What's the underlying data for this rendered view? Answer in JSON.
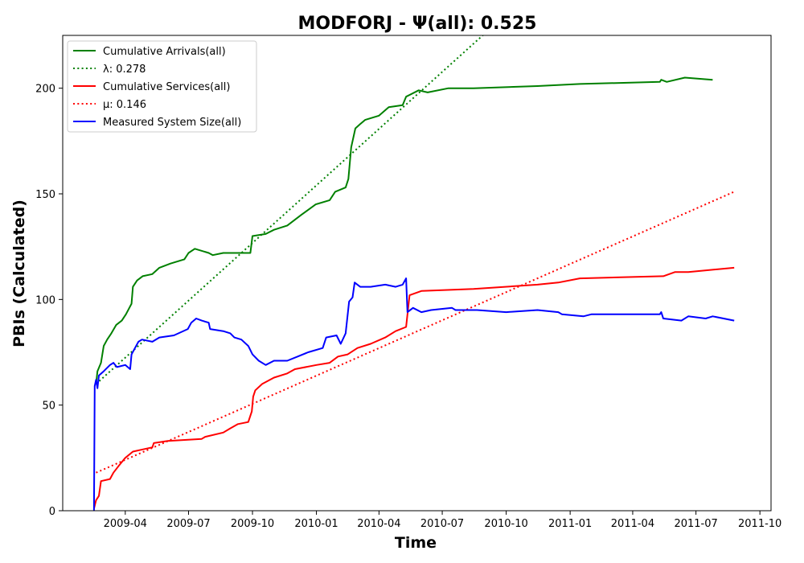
{
  "chart_data": {
    "type": "line",
    "title": "MODFORJ -  Ψ(all): 0.525",
    "xlabel": "Time",
    "ylabel": "PBIs (Calculated)",
    "xlim": [
      "2009-01-01",
      "2011-10-17"
    ],
    "ylim": [
      0,
      225
    ],
    "x_ticks": [
      "2009-04",
      "2009-07",
      "2009-10",
      "2010-01",
      "2010-04",
      "2010-07",
      "2010-10",
      "2011-01",
      "2011-04",
      "2011-07",
      "2011-10"
    ],
    "y_ticks": [
      0,
      50,
      100,
      150,
      200
    ],
    "grid": false,
    "legend_position": "top-left",
    "series": [
      {
        "name": "Cumulative Arrivals(all)",
        "color": "#008000",
        "style": "solid",
        "points": [
          [
            "2009-02-18",
            60
          ],
          [
            "2009-02-20",
            66
          ],
          [
            "2009-02-25",
            70
          ],
          [
            "2009-03-01",
            78
          ],
          [
            "2009-03-06",
            81
          ],
          [
            "2009-03-12",
            84
          ],
          [
            "2009-03-19",
            88
          ],
          [
            "2009-03-27",
            90
          ],
          [
            "2009-04-02",
            93
          ],
          [
            "2009-04-10",
            98
          ],
          [
            "2009-04-12",
            106
          ],
          [
            "2009-04-18",
            109
          ],
          [
            "2009-04-26",
            111
          ],
          [
            "2009-05-10",
            112
          ],
          [
            "2009-05-20",
            115
          ],
          [
            "2009-06-05",
            117
          ],
          [
            "2009-06-25",
            119
          ],
          [
            "2009-07-01",
            122
          ],
          [
            "2009-07-10",
            124
          ],
          [
            "2009-07-30",
            122
          ],
          [
            "2009-08-05",
            121
          ],
          [
            "2009-08-20",
            122
          ],
          [
            "2009-09-10",
            122
          ],
          [
            "2009-09-28",
            122
          ],
          [
            "2009-10-01",
            130
          ],
          [
            "2009-10-20",
            131
          ],
          [
            "2009-11-01",
            133
          ],
          [
            "2009-11-20",
            135
          ],
          [
            "2009-12-10",
            140
          ],
          [
            "2009-12-31",
            145
          ],
          [
            "2010-01-20",
            147
          ],
          [
            "2010-01-28",
            151
          ],
          [
            "2010-02-12",
            153
          ],
          [
            "2010-02-16",
            157
          ],
          [
            "2010-02-20",
            172
          ],
          [
            "2010-02-26",
            181
          ],
          [
            "2010-03-05",
            183
          ],
          [
            "2010-03-12",
            185
          ],
          [
            "2010-04-01",
            187
          ],
          [
            "2010-04-15",
            191
          ],
          [
            "2010-05-05",
            192
          ],
          [
            "2010-05-10",
            196
          ],
          [
            "2010-05-28",
            199
          ],
          [
            "2010-06-10",
            198
          ],
          [
            "2010-07-10",
            200
          ],
          [
            "2010-08-15",
            200
          ],
          [
            "2010-11-15",
            201
          ],
          [
            "2011-01-15",
            202
          ],
          [
            "2011-05-10",
            203
          ],
          [
            "2011-05-12",
            204
          ],
          [
            "2011-05-20",
            203
          ],
          [
            "2011-06-15",
            205
          ],
          [
            "2011-07-25",
            204
          ]
        ]
      },
      {
        "name": "λ: 0.278",
        "color": "#008000",
        "style": "dotted",
        "points": [
          [
            "2009-02-18",
            60
          ],
          [
            "2010-10-01",
            235
          ]
        ]
      },
      {
        "name": "Cumulative Services(all)",
        "color": "#ff0000",
        "style": "solid",
        "points": [
          [
            "2009-02-15",
            1
          ],
          [
            "2009-02-18",
            5
          ],
          [
            "2009-02-22",
            7
          ],
          [
            "2009-02-25",
            14
          ],
          [
            "2009-03-10",
            15
          ],
          [
            "2009-03-15",
            18
          ],
          [
            "2009-03-22",
            21
          ],
          [
            "2009-04-01",
            25
          ],
          [
            "2009-04-12",
            28
          ],
          [
            "2009-04-26",
            29
          ],
          [
            "2009-05-10",
            30
          ],
          [
            "2009-05-12",
            32
          ],
          [
            "2009-06-01",
            33
          ],
          [
            "2009-07-20",
            34
          ],
          [
            "2009-07-25",
            35
          ],
          [
            "2009-08-20",
            37
          ],
          [
            "2009-08-30",
            39
          ],
          [
            "2009-09-10",
            41
          ],
          [
            "2009-09-25",
            42
          ],
          [
            "2009-09-30",
            47
          ],
          [
            "2009-10-02",
            54
          ],
          [
            "2009-10-05",
            57
          ],
          [
            "2009-10-15",
            60
          ],
          [
            "2009-11-01",
            63
          ],
          [
            "2009-11-20",
            65
          ],
          [
            "2009-12-01",
            67
          ],
          [
            "2010-01-01",
            69
          ],
          [
            "2010-01-20",
            70
          ],
          [
            "2010-02-01",
            73
          ],
          [
            "2010-02-15",
            74
          ],
          [
            "2010-03-01",
            77
          ],
          [
            "2010-03-20",
            79
          ],
          [
            "2010-04-10",
            82
          ],
          [
            "2010-04-25",
            85
          ],
          [
            "2010-05-10",
            87
          ],
          [
            "2010-05-15",
            102
          ],
          [
            "2010-06-01",
            104
          ],
          [
            "2010-08-15",
            105
          ],
          [
            "2010-11-15",
            107
          ],
          [
            "2010-12-15",
            108
          ],
          [
            "2011-01-15",
            110
          ],
          [
            "2011-05-15",
            111
          ],
          [
            "2011-06-01",
            113
          ],
          [
            "2011-06-20",
            113
          ],
          [
            "2011-08-25",
            115
          ]
        ]
      },
      {
        "name": "μ: 0.146",
        "color": "#ff0000",
        "style": "dotted",
        "points": [
          [
            "2009-02-18",
            18
          ],
          [
            "2011-08-25",
            151
          ]
        ]
      },
      {
        "name": "Measured System Size(all)",
        "color": "#0000ff",
        "style": "solid",
        "points": [
          [
            "2009-02-15",
            0
          ],
          [
            "2009-02-16",
            59
          ],
          [
            "2009-02-18",
            62
          ],
          [
            "2009-02-20",
            58
          ],
          [
            "2009-02-22",
            64
          ],
          [
            "2009-03-01",
            66
          ],
          [
            "2009-03-10",
            69
          ],
          [
            "2009-03-15",
            70
          ],
          [
            "2009-03-20",
            68
          ],
          [
            "2009-04-01",
            69
          ],
          [
            "2009-04-08",
            67
          ],
          [
            "2009-04-10",
            74
          ],
          [
            "2009-04-15",
            77
          ],
          [
            "2009-04-20",
            80
          ],
          [
            "2009-04-25",
            81
          ],
          [
            "2009-05-10",
            80
          ],
          [
            "2009-05-20",
            82
          ],
          [
            "2009-06-10",
            83
          ],
          [
            "2009-06-30",
            86
          ],
          [
            "2009-07-05",
            89
          ],
          [
            "2009-07-12",
            91
          ],
          [
            "2009-07-20",
            90
          ],
          [
            "2009-07-30",
            89
          ],
          [
            "2009-08-01",
            86
          ],
          [
            "2009-08-20",
            85
          ],
          [
            "2009-08-30",
            84
          ],
          [
            "2009-09-05",
            82
          ],
          [
            "2009-09-15",
            81
          ],
          [
            "2009-09-25",
            78
          ],
          [
            "2009-10-01",
            74
          ],
          [
            "2009-10-10",
            71
          ],
          [
            "2009-10-20",
            69
          ],
          [
            "2009-11-01",
            71
          ],
          [
            "2009-11-20",
            71
          ],
          [
            "2009-12-05",
            73
          ],
          [
            "2009-12-20",
            75
          ],
          [
            "2010-01-10",
            77
          ],
          [
            "2010-01-15",
            82
          ],
          [
            "2010-01-30",
            83
          ],
          [
            "2010-02-05",
            79
          ],
          [
            "2010-02-12",
            84
          ],
          [
            "2010-02-17",
            99
          ],
          [
            "2010-02-22",
            101
          ],
          [
            "2010-02-25",
            108
          ],
          [
            "2010-03-05",
            106
          ],
          [
            "2010-03-20",
            106
          ],
          [
            "2010-04-10",
            107
          ],
          [
            "2010-04-25",
            106
          ],
          [
            "2010-05-05",
            107
          ],
          [
            "2010-05-10",
            110
          ],
          [
            "2010-05-12",
            94
          ],
          [
            "2010-05-20",
            96
          ],
          [
            "2010-06-01",
            94
          ],
          [
            "2010-06-15",
            95
          ],
          [
            "2010-07-15",
            96
          ],
          [
            "2010-07-20",
            95
          ],
          [
            "2010-08-20",
            95
          ],
          [
            "2010-10-01",
            94
          ],
          [
            "2010-11-15",
            95
          ],
          [
            "2010-12-15",
            94
          ],
          [
            "2010-12-20",
            93
          ],
          [
            "2011-01-20",
            92
          ],
          [
            "2011-02-01",
            93
          ],
          [
            "2011-05-10",
            93
          ],
          [
            "2011-05-12",
            94
          ],
          [
            "2011-05-15",
            91
          ],
          [
            "2011-06-10",
            90
          ],
          [
            "2011-06-20",
            92
          ],
          [
            "2011-07-15",
            91
          ],
          [
            "2011-07-25",
            92
          ],
          [
            "2011-08-25",
            90
          ]
        ]
      }
    ]
  }
}
